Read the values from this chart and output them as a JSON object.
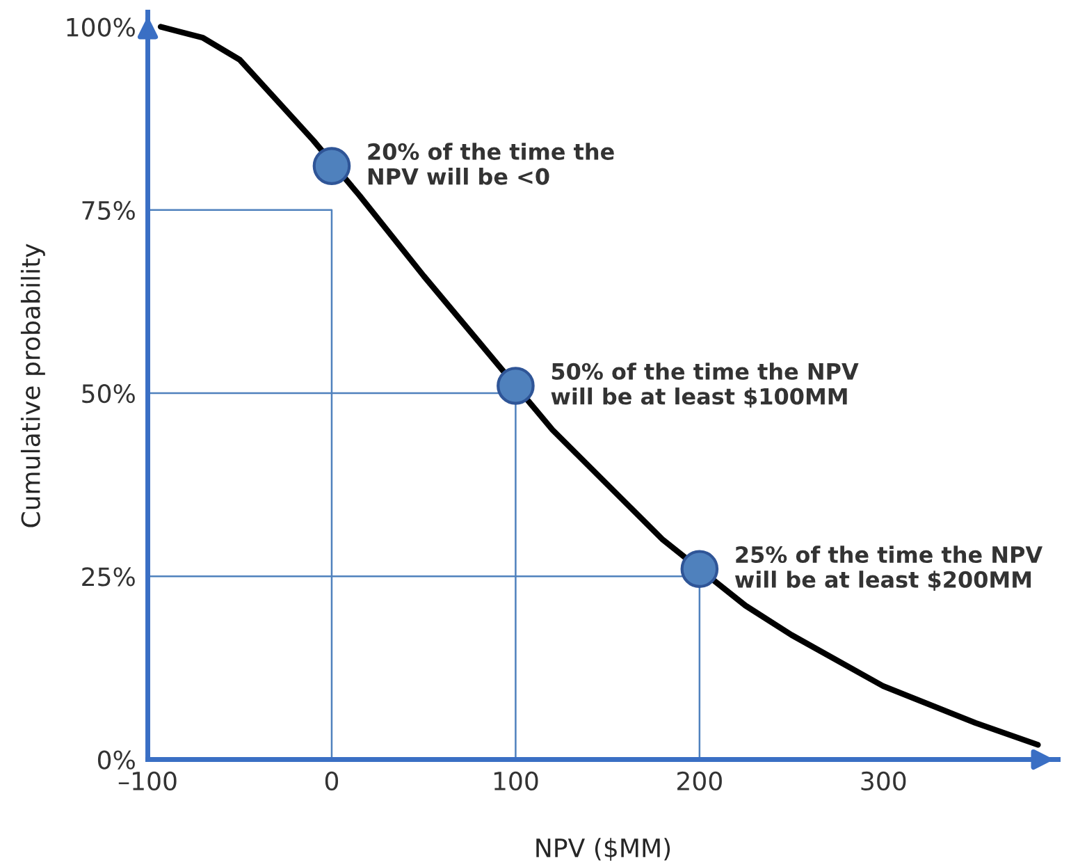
{
  "chart_data": {
    "type": "line",
    "xlabel": "NPV ($MM)",
    "ylabel": "Cumulative probability",
    "xlim": [
      -100,
      395
    ],
    "ylim": [
      0,
      102
    ],
    "xticks": [
      {
        "value": -100,
        "label": "–100"
      },
      0,
      100,
      200,
      300
    ],
    "yticks": [
      {
        "value": 0,
        "label": "0%"
      },
      {
        "value": 25,
        "label": "25%"
      },
      {
        "value": 50,
        "label": "50%"
      },
      {
        "value": 75,
        "label": "75%"
      },
      {
        "value": 100,
        "label": "100%"
      }
    ],
    "grid": false,
    "legend": false,
    "series": [
      {
        "color": "#000000",
        "x": [
          -93,
          -70,
          -50,
          -30,
          -10,
          15,
          50,
          80,
          120,
          150,
          180,
          225,
          250,
          300,
          350,
          384
        ],
        "values": [
          100,
          98.5,
          95.5,
          90,
          84.5,
          77,
          66,
          57,
          45,
          37.5,
          30,
          21,
          17,
          10,
          5,
          2
        ]
      },
      {
        "type": "line",
        "color": "#4f81bd",
        "x": [
          -100,
          0,
          0
        ],
        "values": [
          75,
          75,
          0
        ]
      },
      {
        "type": "line",
        "color": "#4f81bd",
        "x": [
          -100,
          100,
          100
        ],
        "values": [
          50,
          50,
          0
        ]
      },
      {
        "type": "line",
        "color": "#4f81bd",
        "x": [
          -100,
          200,
          200
        ],
        "values": [
          25,
          25,
          0
        ]
      },
      {
        "type": "scatter",
        "color": "#4f81bd",
        "marker": "circle",
        "x": [
          0,
          100,
          200
        ],
        "values": [
          81,
          51,
          26
        ]
      }
    ],
    "annotations": [
      {
        "text": "20% of the time the\nNPV will be <0",
        "x": 0,
        "y": 81
      },
      {
        "text": "50% of the time the NPV\nwill be at least $100MM",
        "x": 100,
        "y": 51
      },
      {
        "text": "25% of the time the NPV\nwill be at least $200MM",
        "x": 200,
        "y": 26
      }
    ]
  }
}
